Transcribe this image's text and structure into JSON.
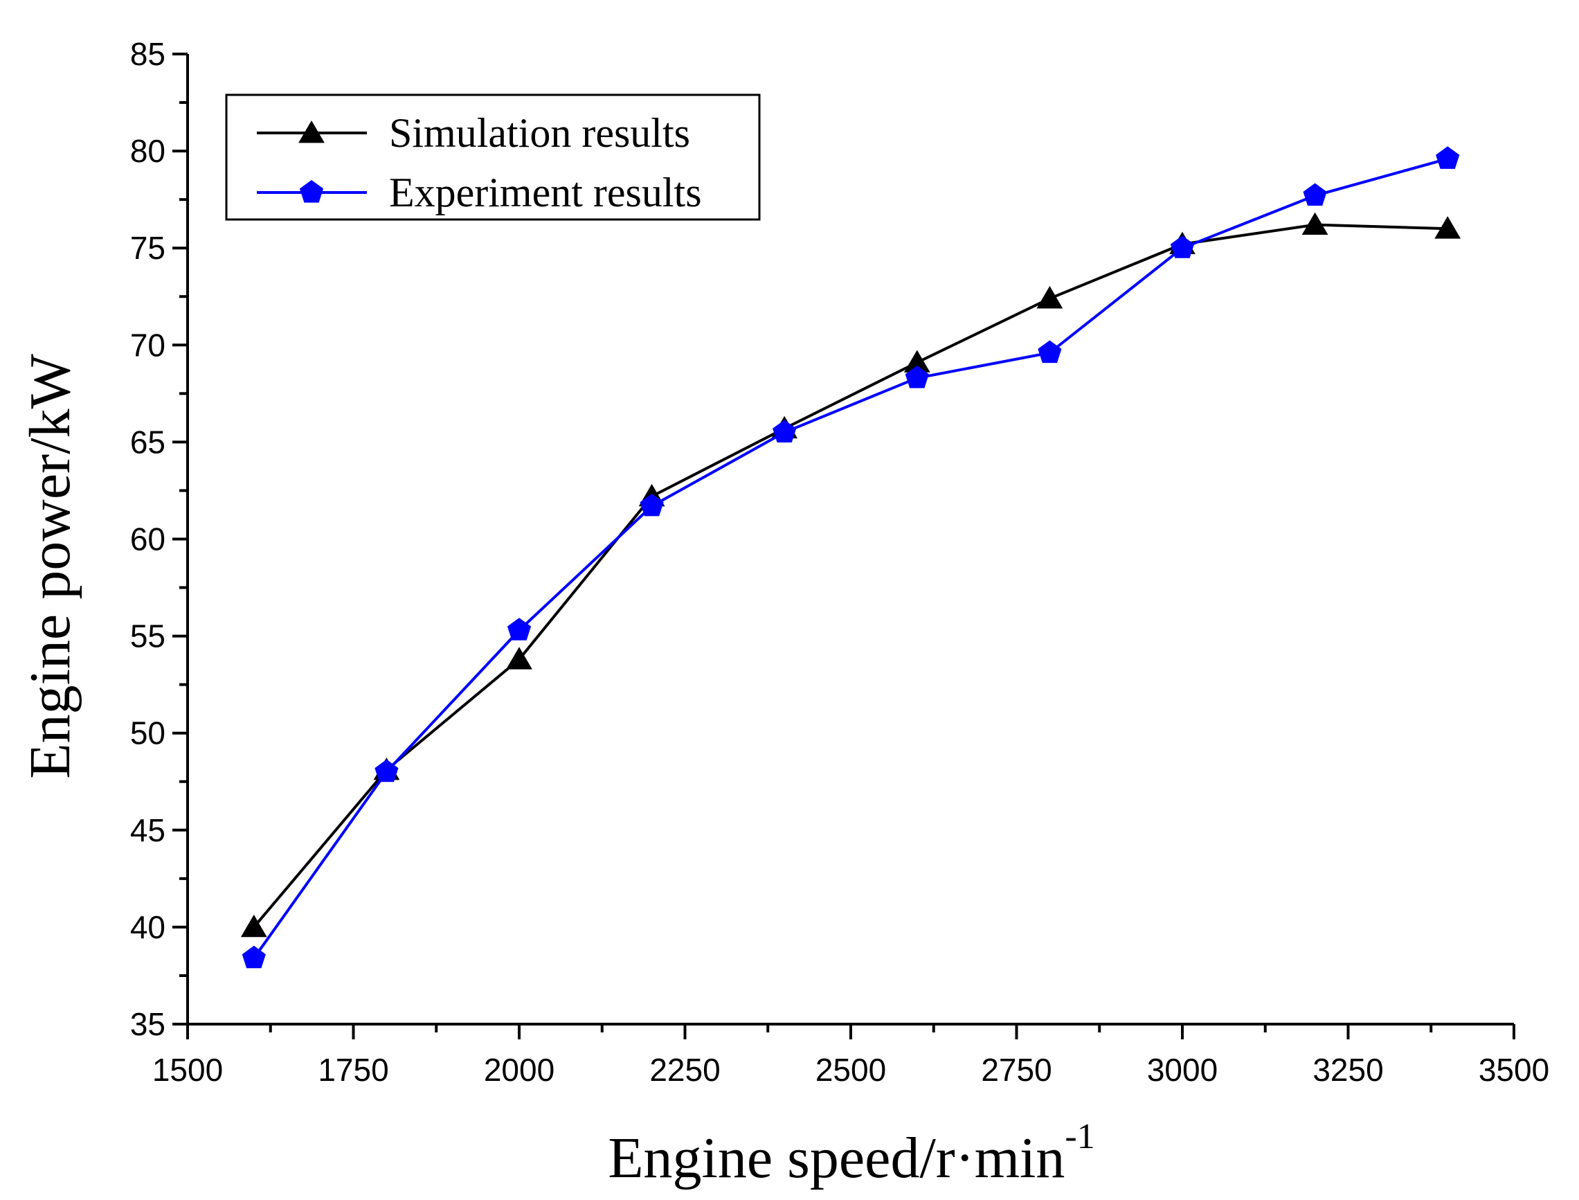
{
  "chart_data": {
    "type": "line",
    "xlabel": "Engine speed/r·min",
    "xlabel_sup": "-1",
    "ylabel": "Engine power/kW",
    "xlim": [
      1500,
      3500
    ],
    "ylim": [
      35,
      85
    ],
    "xticks": [
      1500,
      1750,
      2000,
      2250,
      2500,
      2750,
      3000,
      3250,
      3500
    ],
    "yticks": [
      35,
      40,
      45,
      50,
      55,
      60,
      65,
      70,
      75,
      80,
      85
    ],
    "x": [
      1600,
      1800,
      2000,
      2200,
      2400,
      2600,
      2800,
      3000,
      3200,
      3400
    ],
    "series": [
      {
        "name": "Simulation results",
        "marker": "triangle",
        "color": "#000000",
        "values": [
          40.0,
          48.1,
          53.8,
          62.2,
          65.7,
          69.1,
          72.4,
          75.2,
          76.2,
          76.0
        ]
      },
      {
        "name": "Experiment results",
        "marker": "pentagon",
        "color": "#0000ff",
        "values": [
          38.4,
          48.0,
          55.3,
          61.7,
          65.5,
          68.3,
          69.6,
          75.0,
          77.7,
          79.6
        ]
      }
    ],
    "grid": false,
    "legend": "top-left"
  }
}
